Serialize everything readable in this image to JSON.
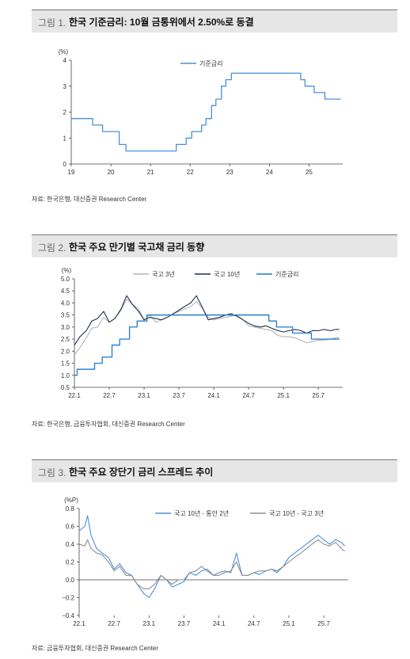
{
  "figures": [
    {
      "number": "그림 1.",
      "title": "한국 기준금리: 10월 금통위에서 2.50%로 동결",
      "source": "자료: 한국은행, 대신증권 Research Center"
    },
    {
      "number": "그림 2.",
      "title": "한국 주요 만기별 국고채 금리 동향",
      "source": "자료: 한국은행, 금융투자협회, 대신증권 Research Center"
    },
    {
      "number": "그림 3.",
      "title": "한국 주요 장단기 금리 스프레드 추이",
      "source": "자료: 금융투자협회, 대신증권 Research Center"
    }
  ],
  "chart_data": [
    {
      "type": "line",
      "ylabel": "(%)",
      "ylim": [
        0,
        4
      ],
      "yticks": [
        "0",
        "1",
        "2",
        "3",
        "4"
      ],
      "xlim": [
        2019,
        2025.85
      ],
      "xticks": [
        {
          "label": "19",
          "x": 2019
        },
        {
          "label": "20",
          "x": 2020
        },
        {
          "label": "21",
          "x": 2021
        },
        {
          "label": "22",
          "x": 2022
        },
        {
          "label": "23",
          "x": 2023
        },
        {
          "label": "24",
          "x": 2024
        },
        {
          "label": "25",
          "x": 2025
        }
      ],
      "legend_position": "top-center",
      "series": [
        {
          "name": "기준금리",
          "color": "#4a90d9",
          "step": true,
          "points": [
            [
              2019,
              1.75
            ],
            [
              2019.54,
              1.5
            ],
            [
              2019.79,
              1.25
            ],
            [
              2020.21,
              0.75
            ],
            [
              2020.38,
              0.5
            ],
            [
              2021.65,
              0.75
            ],
            [
              2021.9,
              1.0
            ],
            [
              2022.04,
              1.25
            ],
            [
              2022.29,
              1.5
            ],
            [
              2022.4,
              1.75
            ],
            [
              2022.54,
              2.25
            ],
            [
              2022.65,
              2.5
            ],
            [
              2022.79,
              3.0
            ],
            [
              2022.9,
              3.25
            ],
            [
              2023.04,
              3.5
            ],
            [
              2024.79,
              3.25
            ],
            [
              2024.9,
              3.0
            ],
            [
              2025.13,
              2.75
            ],
            [
              2025.4,
              2.5
            ],
            [
              2025.8,
              2.5
            ]
          ]
        }
      ]
    },
    {
      "type": "line",
      "ylabel": "(%)",
      "ylim": [
        0.5,
        5.0
      ],
      "yticks": [
        "0.5",
        "1.0",
        "1.5",
        "2.0",
        "2.5",
        "3.0",
        "3.5",
        "4.0",
        "4.5",
        "5.0"
      ],
      "xlim": [
        2022.0,
        2025.85
      ],
      "xticks": [
        {
          "label": "22.1",
          "x": 2022.0
        },
        {
          "label": "22.7",
          "x": 2022.5
        },
        {
          "label": "23.1",
          "x": 2023.0
        },
        {
          "label": "23.7",
          "x": 2023.5
        },
        {
          "label": "24.1",
          "x": 2024.0
        },
        {
          "label": "24.7",
          "x": 2024.5
        },
        {
          "label": "25.1",
          "x": 2025.0
        },
        {
          "label": "25.7",
          "x": 2025.5
        }
      ],
      "legend_position": "top",
      "series": [
        {
          "name": "국고 3년",
          "color": "#b5b5b5",
          "points": [
            [
              2022.0,
              1.85
            ],
            [
              2022.08,
              2.15
            ],
            [
              2022.17,
              2.55
            ],
            [
              2022.25,
              2.95
            ],
            [
              2022.33,
              3.0
            ],
            [
              2022.42,
              3.4
            ],
            [
              2022.5,
              3.2
            ],
            [
              2022.58,
              3.35
            ],
            [
              2022.67,
              3.7
            ],
            [
              2022.75,
              4.15
            ],
            [
              2022.83,
              3.95
            ],
            [
              2022.92,
              3.75
            ],
            [
              2023.0,
              3.3
            ],
            [
              2023.08,
              3.5
            ],
            [
              2023.17,
              3.2
            ],
            [
              2023.25,
              3.3
            ],
            [
              2023.33,
              3.4
            ],
            [
              2023.42,
              3.55
            ],
            [
              2023.5,
              3.65
            ],
            [
              2023.58,
              3.75
            ],
            [
              2023.67,
              3.85
            ],
            [
              2023.75,
              4.05
            ],
            [
              2023.83,
              3.8
            ],
            [
              2023.92,
              3.4
            ],
            [
              2024.0,
              3.3
            ],
            [
              2024.08,
              3.35
            ],
            [
              2024.17,
              3.4
            ],
            [
              2024.25,
              3.45
            ],
            [
              2024.33,
              3.5
            ],
            [
              2024.42,
              3.3
            ],
            [
              2024.5,
              3.05
            ],
            [
              2024.58,
              3.0
            ],
            [
              2024.67,
              2.95
            ],
            [
              2024.75,
              2.9
            ],
            [
              2024.83,
              2.85
            ],
            [
              2024.92,
              2.65
            ],
            [
              2025.0,
              2.6
            ],
            [
              2025.08,
              2.6
            ],
            [
              2025.17,
              2.55
            ],
            [
              2025.25,
              2.45
            ],
            [
              2025.33,
              2.35
            ],
            [
              2025.42,
              2.4
            ],
            [
              2025.5,
              2.45
            ],
            [
              2025.58,
              2.45
            ],
            [
              2025.67,
              2.5
            ],
            [
              2025.75,
              2.55
            ],
            [
              2025.8,
              2.55
            ]
          ]
        },
        {
          "name": "국고 10년",
          "color": "#1f2f52",
          "points": [
            [
              2022.0,
              2.25
            ],
            [
              2022.08,
              2.6
            ],
            [
              2022.17,
              2.85
            ],
            [
              2022.25,
              3.25
            ],
            [
              2022.33,
              3.35
            ],
            [
              2022.42,
              3.65
            ],
            [
              2022.5,
              3.2
            ],
            [
              2022.58,
              3.35
            ],
            [
              2022.67,
              3.75
            ],
            [
              2022.75,
              4.3
            ],
            [
              2022.83,
              3.95
            ],
            [
              2022.92,
              3.65
            ],
            [
              2023.0,
              3.3
            ],
            [
              2023.08,
              3.4
            ],
            [
              2023.17,
              3.35
            ],
            [
              2023.25,
              3.3
            ],
            [
              2023.33,
              3.4
            ],
            [
              2023.42,
              3.55
            ],
            [
              2023.5,
              3.7
            ],
            [
              2023.58,
              3.85
            ],
            [
              2023.67,
              4.0
            ],
            [
              2023.75,
              4.3
            ],
            [
              2023.83,
              3.85
            ],
            [
              2023.92,
              3.3
            ],
            [
              2024.0,
              3.35
            ],
            [
              2024.08,
              3.4
            ],
            [
              2024.17,
              3.5
            ],
            [
              2024.25,
              3.55
            ],
            [
              2024.33,
              3.45
            ],
            [
              2024.42,
              3.3
            ],
            [
              2024.5,
              3.15
            ],
            [
              2024.58,
              3.05
            ],
            [
              2024.67,
              3.0
            ],
            [
              2024.75,
              3.05
            ],
            [
              2024.83,
              2.95
            ],
            [
              2024.92,
              2.85
            ],
            [
              2025.0,
              2.8
            ],
            [
              2025.08,
              2.85
            ],
            [
              2025.17,
              2.9
            ],
            [
              2025.25,
              2.85
            ],
            [
              2025.33,
              2.75
            ],
            [
              2025.42,
              2.85
            ],
            [
              2025.5,
              2.85
            ],
            [
              2025.58,
              2.9
            ],
            [
              2025.67,
              2.85
            ],
            [
              2025.75,
              2.9
            ],
            [
              2025.8,
              2.9
            ]
          ]
        },
        {
          "name": "기준금리",
          "color": "#1f7bc9",
          "step": true,
          "points": [
            [
              2022.0,
              1.0
            ],
            [
              2022.04,
              1.25
            ],
            [
              2022.29,
              1.5
            ],
            [
              2022.4,
              1.75
            ],
            [
              2022.54,
              2.25
            ],
            [
              2022.65,
              2.5
            ],
            [
              2022.79,
              3.0
            ],
            [
              2022.9,
              3.25
            ],
            [
              2023.04,
              3.5
            ],
            [
              2024.79,
              3.25
            ],
            [
              2024.9,
              3.0
            ],
            [
              2025.13,
              2.75
            ],
            [
              2025.4,
              2.5
            ],
            [
              2025.8,
              2.5
            ]
          ]
        }
      ]
    },
    {
      "type": "line",
      "ylabel": "(%P)",
      "ylim": [
        -0.4,
        0.8
      ],
      "yticks": [
        "−0.4",
        "−0.2",
        "0.0",
        "0.2",
        "0.4",
        "0.6",
        "0.8"
      ],
      "xlim": [
        2022.0,
        2025.85
      ],
      "xticks": [
        {
          "label": "22.1",
          "x": 2022.0
        },
        {
          "label": "22.7",
          "x": 2022.5
        },
        {
          "label": "23.1",
          "x": 2023.0
        },
        {
          "label": "23.7",
          "x": 2023.5
        },
        {
          "label": "24.1",
          "x": 2024.0
        },
        {
          "label": "24.7",
          "x": 2024.5
        },
        {
          "label": "25.1",
          "x": 2025.0
        },
        {
          "label": "25.7",
          "x": 2025.5
        }
      ],
      "legend_position": "top",
      "series": [
        {
          "name": "국고 10년 - 통안 2년",
          "color": "#4a8fe0",
          "points": [
            [
              2022.0,
              0.55
            ],
            [
              2022.08,
              0.6
            ],
            [
              2022.12,
              0.72
            ],
            [
              2022.17,
              0.5
            ],
            [
              2022.25,
              0.35
            ],
            [
              2022.33,
              0.3
            ],
            [
              2022.42,
              0.25
            ],
            [
              2022.5,
              0.12
            ],
            [
              2022.58,
              0.18
            ],
            [
              2022.67,
              0.08
            ],
            [
              2022.75,
              0.05
            ],
            [
              2022.83,
              -0.05
            ],
            [
              2022.92,
              -0.15
            ],
            [
              2023.0,
              -0.2
            ],
            [
              2023.08,
              -0.1
            ],
            [
              2023.17,
              0.05
            ],
            [
              2023.25,
              0.0
            ],
            [
              2023.33,
              -0.08
            ],
            [
              2023.42,
              -0.05
            ],
            [
              2023.5,
              -0.02
            ],
            [
              2023.58,
              0.08
            ],
            [
              2023.67,
              0.05
            ],
            [
              2023.75,
              0.1
            ],
            [
              2023.83,
              0.12
            ],
            [
              2023.92,
              0.05
            ],
            [
              2024.0,
              0.08
            ],
            [
              2024.08,
              0.1
            ],
            [
              2024.17,
              0.08
            ],
            [
              2024.25,
              0.3
            ],
            [
              2024.33,
              0.05
            ],
            [
              2024.42,
              0.05
            ],
            [
              2024.5,
              0.08
            ],
            [
              2024.58,
              0.06
            ],
            [
              2024.67,
              0.1
            ],
            [
              2024.75,
              0.12
            ],
            [
              2024.83,
              0.08
            ],
            [
              2024.92,
              0.15
            ],
            [
              2025.0,
              0.25
            ],
            [
              2025.08,
              0.3
            ],
            [
              2025.17,
              0.35
            ],
            [
              2025.25,
              0.4
            ],
            [
              2025.33,
              0.45
            ],
            [
              2025.42,
              0.5
            ],
            [
              2025.5,
              0.45
            ],
            [
              2025.58,
              0.4
            ],
            [
              2025.67,
              0.45
            ],
            [
              2025.75,
              0.42
            ],
            [
              2025.8,
              0.38
            ]
          ]
        },
        {
          "name": "국고 10년 - 국고 3년",
          "color": "#8f8f8f",
          "points": [
            [
              2022.0,
              0.4
            ],
            [
              2022.08,
              0.38
            ],
            [
              2022.12,
              0.45
            ],
            [
              2022.17,
              0.35
            ],
            [
              2022.25,
              0.3
            ],
            [
              2022.33,
              0.28
            ],
            [
              2022.42,
              0.2
            ],
            [
              2022.5,
              0.1
            ],
            [
              2022.58,
              0.15
            ],
            [
              2022.67,
              0.05
            ],
            [
              2022.75,
              0.05
            ],
            [
              2022.83,
              -0.05
            ],
            [
              2022.92,
              -0.1
            ],
            [
              2023.0,
              -0.1
            ],
            [
              2023.08,
              -0.05
            ],
            [
              2023.17,
              0.05
            ],
            [
              2023.25,
              0.0
            ],
            [
              2023.33,
              -0.05
            ],
            [
              2023.42,
              0.0
            ],
            [
              2023.5,
              0.0
            ],
            [
              2023.58,
              0.08
            ],
            [
              2023.67,
              0.1
            ],
            [
              2023.75,
              0.15
            ],
            [
              2023.83,
              0.1
            ],
            [
              2023.92,
              0.05
            ],
            [
              2024.0,
              0.05
            ],
            [
              2024.08,
              0.08
            ],
            [
              2024.17,
              0.1
            ],
            [
              2024.25,
              0.2
            ],
            [
              2024.33,
              0.05
            ],
            [
              2024.42,
              0.05
            ],
            [
              2024.5,
              0.08
            ],
            [
              2024.58,
              0.1
            ],
            [
              2024.67,
              0.1
            ],
            [
              2024.75,
              0.12
            ],
            [
              2024.83,
              0.1
            ],
            [
              2024.92,
              0.15
            ],
            [
              2025.0,
              0.2
            ],
            [
              2025.08,
              0.25
            ],
            [
              2025.17,
              0.3
            ],
            [
              2025.25,
              0.35
            ],
            [
              2025.33,
              0.4
            ],
            [
              2025.42,
              0.45
            ],
            [
              2025.5,
              0.4
            ],
            [
              2025.58,
              0.38
            ],
            [
              2025.67,
              0.42
            ],
            [
              2025.75,
              0.35
            ],
            [
              2025.8,
              0.32
            ]
          ]
        }
      ]
    }
  ]
}
